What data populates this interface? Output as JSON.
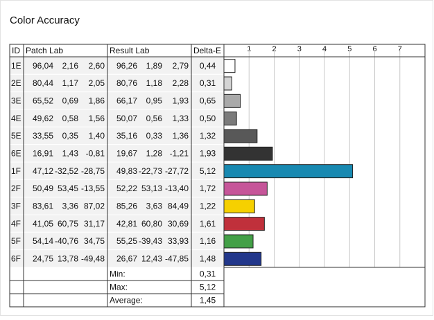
{
  "title": "Color Accuracy",
  "table": {
    "columns": [
      "ID",
      "Patch Lab",
      "Result Lab",
      "Delta-E"
    ],
    "rows": [
      [
        "96,04",
        "2,16",
        "2,60",
        "96,26",
        "1,89",
        "2,79"
      ],
      [
        "80,44",
        "1,17",
        "2,05",
        "80,76",
        "1,18",
        "2,28"
      ],
      [
        "65,52",
        "0,69",
        "1,86",
        "66,17",
        "0,95",
        "1,93"
      ],
      [
        "49,62",
        "0,58",
        "1,56",
        "50,07",
        "0,56",
        "1,33"
      ],
      [
        "33,55",
        "0,35",
        "1,40",
        "35,16",
        "0,33",
        "1,36"
      ],
      [
        "16,91",
        "1,43",
        "-0,81",
        "19,67",
        "1,28",
        "-1,21"
      ],
      [
        "47,12",
        "-32,52",
        "-28,75",
        "49,83",
        "-22,73",
        "-27,72"
      ],
      [
        "50,49",
        "53,45",
        "-13,55",
        "52,22",
        "53,13",
        "-13,40"
      ],
      [
        "83,61",
        "3,36",
        "87,02",
        "85,26",
        "3,63",
        "84,49"
      ],
      [
        "41,05",
        "60,75",
        "31,17",
        "42,81",
        "60,80",
        "30,69"
      ],
      [
        "54,14",
        "-40,76",
        "34,75",
        "55,25",
        "-39,43",
        "33,93"
      ],
      [
        "24,75",
        "13,78",
        "-49,48",
        "26,67",
        "12,43",
        "-47,85"
      ]
    ],
    "summary": [
      [
        "Min:",
        "0,31"
      ],
      [
        "Max:",
        "5,12"
      ],
      [
        "Average:",
        "1,45"
      ]
    ]
  },
  "chart_data": {
    "type": "bar",
    "orientation": "horizontal",
    "categories": [
      "1E",
      "2E",
      "3E",
      "4E",
      "5E",
      "6E",
      "1F",
      "2F",
      "3F",
      "4F",
      "5F",
      "6F"
    ],
    "values": [
      0.44,
      0.31,
      0.65,
      0.5,
      1.32,
      1.93,
      5.12,
      1.72,
      1.22,
      1.61,
      1.16,
      1.48
    ],
    "value_labels": [
      "0,44",
      "0,31",
      "0,65",
      "0,50",
      "1,32",
      "1,93",
      "5,12",
      "1,72",
      "1,22",
      "1,61",
      "1,16",
      "1,48"
    ],
    "colors": [
      "#ffffff",
      "#d4d4d4",
      "#a9a9a9",
      "#7b7b7b",
      "#585858",
      "#333333",
      "#1889b1",
      "#c65599",
      "#f6d000",
      "#c0303b",
      "#43a047",
      "#22378b"
    ],
    "xlim": [
      0,
      8
    ],
    "xticks": [
      1,
      2,
      3,
      4,
      5,
      6,
      7
    ],
    "grid": true
  }
}
